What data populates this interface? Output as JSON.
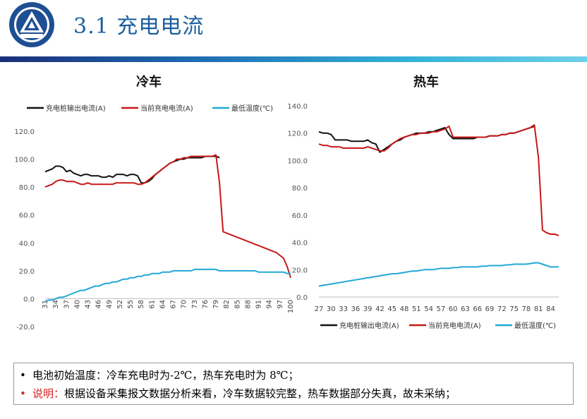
{
  "slide": {
    "title": "3.1 充电电流"
  },
  "colors": {
    "series1": "#111111",
    "series2": "#c81818",
    "series3": "#22a8d8",
    "accent": "#1b5e9c"
  },
  "notes": [
    {
      "bullet": "•",
      "label": "",
      "text": "电池初始温度：冷车充电时为-2℃，热车充电时为 8℃；"
    },
    {
      "bullet": "•",
      "label": "说明：",
      "text": "根据设备采集报文数据分析来看，冷车数据较完整，热车数据部分失真，故未采纳；"
    }
  ],
  "chart_data": [
    {
      "type": "line",
      "title": "冷车",
      "legend_position": "top",
      "ylim": [
        -20,
        120
      ],
      "yticks": [
        "-20.0",
        "0.0",
        "20.0",
        "40.0",
        "60.0",
        "80.0",
        "100.0",
        "120.0"
      ],
      "x_tick_labels": [
        "31",
        "34",
        "37",
        "40",
        "43",
        "46",
        "49",
        "52",
        "55",
        "58",
        "61",
        "64",
        "67",
        "70",
        "73",
        "76",
        "79",
        "82",
        "85",
        "88",
        "91",
        "94",
        "97",
        "100"
      ],
      "x": [
        31,
        32,
        33,
        34,
        35,
        36,
        37,
        38,
        39,
        40,
        41,
        42,
        43,
        44,
        45,
        46,
        47,
        48,
        49,
        50,
        51,
        52,
        53,
        54,
        55,
        56,
        57,
        58,
        59,
        60,
        61,
        62,
        63,
        64,
        65,
        66,
        67,
        68,
        69,
        70,
        71,
        72,
        73,
        74,
        75,
        76,
        77,
        78,
        79,
        80,
        81,
        82,
        83,
        84,
        85,
        86,
        87,
        88,
        89,
        90,
        91,
        92,
        93,
        94,
        95,
        96,
        97,
        98,
        99,
        100
      ],
      "series": [
        {
          "name": "充电桩输出电流(A)",
          "color": "#111111",
          "values": [
            91,
            92,
            93,
            95,
            95,
            94,
            91,
            92,
            90,
            89,
            88,
            89,
            89,
            88,
            88,
            88,
            87,
            87,
            88,
            87,
            89,
            89,
            89,
            88,
            89,
            89,
            88,
            83,
            83,
            84,
            86,
            89,
            91,
            93,
            95,
            97,
            98,
            99,
            100,
            100,
            101,
            101,
            101,
            101,
            101,
            102,
            102,
            102,
            102,
            101,
            null,
            null,
            null,
            null,
            null,
            null,
            null,
            null,
            null,
            null,
            null,
            null,
            null,
            null,
            null,
            null,
            null,
            null,
            null,
            null
          ]
        },
        {
          "name": "当前充电电流(A)",
          "color": "#c81818",
          "values": [
            80,
            81,
            82,
            84,
            85,
            85,
            84,
            84,
            84,
            83,
            82,
            82,
            83,
            82,
            82,
            82,
            82,
            82,
            82,
            82,
            83,
            83,
            83,
            83,
            83,
            83,
            82,
            82,
            83,
            85,
            87,
            89,
            91,
            93,
            95,
            97,
            98,
            100,
            100,
            101,
            101,
            102,
            102,
            102,
            102,
            102,
            102,
            102,
            103,
            83,
            48,
            47,
            46,
            45,
            44,
            43,
            42,
            41,
            40,
            39,
            38,
            37,
            36,
            35,
            34,
            33,
            31,
            29,
            23,
            15
          ]
        },
        {
          "name": "最低温度(℃)",
          "color": "#22a8d8",
          "values": [
            -2,
            -1,
            -1,
            0,
            1,
            1,
            2,
            3,
            4,
            5,
            6,
            6,
            7,
            8,
            9,
            9,
            10,
            11,
            11,
            12,
            12,
            13,
            14,
            14,
            15,
            15,
            16,
            16,
            17,
            17,
            18,
            18,
            18,
            19,
            19,
            19,
            20,
            20,
            20,
            20,
            20,
            20,
            21,
            21,
            21,
            21,
            21,
            21,
            21,
            20,
            20,
            20,
            20,
            20,
            20,
            20,
            20,
            20,
            20,
            20,
            19,
            19,
            19,
            19,
            19,
            19,
            19,
            19,
            18,
            18
          ]
        }
      ]
    },
    {
      "type": "line",
      "title": "热车",
      "legend_position": "bottom",
      "ylim": [
        0,
        140
      ],
      "yticks": [
        "0.0",
        "20.0",
        "40.0",
        "60.0",
        "80.0",
        "100.0",
        "120.0",
        "140.0"
      ],
      "x_tick_labels": [
        "27",
        "30",
        "33",
        "36",
        "39",
        "42",
        "45",
        "48",
        "51",
        "54",
        "57",
        "60",
        "63",
        "66",
        "69",
        "72",
        "75",
        "78",
        "81",
        "84"
      ],
      "x": [
        27,
        28,
        29,
        30,
        31,
        32,
        33,
        34,
        35,
        36,
        37,
        38,
        39,
        40,
        41,
        42,
        43,
        44,
        45,
        46,
        47,
        48,
        49,
        50,
        51,
        52,
        53,
        54,
        55,
        56,
        57,
        58,
        59,
        60,
        61,
        62,
        63,
        64,
        65,
        66,
        67,
        68,
        69,
        70,
        71,
        72,
        73,
        74,
        75,
        76,
        77,
        78,
        79,
        80,
        81,
        82,
        83,
        84,
        85,
        86
      ],
      "series": [
        {
          "name": "充电桩输出电流(A)",
          "color": "#111111",
          "values": [
            121,
            120,
            120,
            119,
            115,
            115,
            115,
            115,
            114,
            114,
            114,
            114,
            115,
            113,
            112,
            106,
            108,
            110,
            112,
            114,
            115,
            117,
            118,
            119,
            120,
            120,
            120,
            121,
            121,
            122,
            123,
            124,
            119,
            116,
            116,
            116,
            116,
            116,
            116,
            117,
            117,
            117,
            118,
            118,
            118,
            119,
            119,
            120,
            120,
            121,
            122,
            123,
            124,
            125,
            null,
            null,
            null,
            null,
            null,
            null
          ]
        },
        {
          "name": "当前充电电流(A)",
          "color": "#c81818",
          "values": [
            112,
            111,
            111,
            110,
            110,
            110,
            109,
            109,
            109,
            109,
            109,
            109,
            110,
            109,
            108,
            107,
            107,
            109,
            112,
            114,
            116,
            117,
            118,
            119,
            119,
            120,
            120,
            120,
            121,
            121,
            122,
            123,
            125,
            117,
            117,
            117,
            117,
            117,
            117,
            117,
            117,
            117,
            118,
            118,
            118,
            119,
            119,
            120,
            120,
            121,
            122,
            123,
            124,
            126,
            102,
            49,
            47,
            46,
            46,
            45
          ]
        },
        {
          "name": "最低温度(℃)",
          "color": "#22a8d8",
          "values": [
            8,
            8.5,
            9,
            9.5,
            10,
            10.5,
            11,
            11.5,
            12,
            12.5,
            13,
            13.5,
            14,
            14.5,
            15,
            15.5,
            16,
            16.5,
            17,
            17,
            17.5,
            18,
            18.5,
            19,
            19,
            19.5,
            20,
            20,
            20,
            20.5,
            21,
            21,
            21,
            21.5,
            21.5,
            22,
            22,
            22,
            22,
            22,
            22.5,
            22.5,
            23,
            23,
            23,
            23,
            23.5,
            23.5,
            24,
            24,
            24,
            24,
            24.5,
            25,
            25,
            24,
            23,
            22,
            22,
            22
          ]
        }
      ]
    }
  ]
}
